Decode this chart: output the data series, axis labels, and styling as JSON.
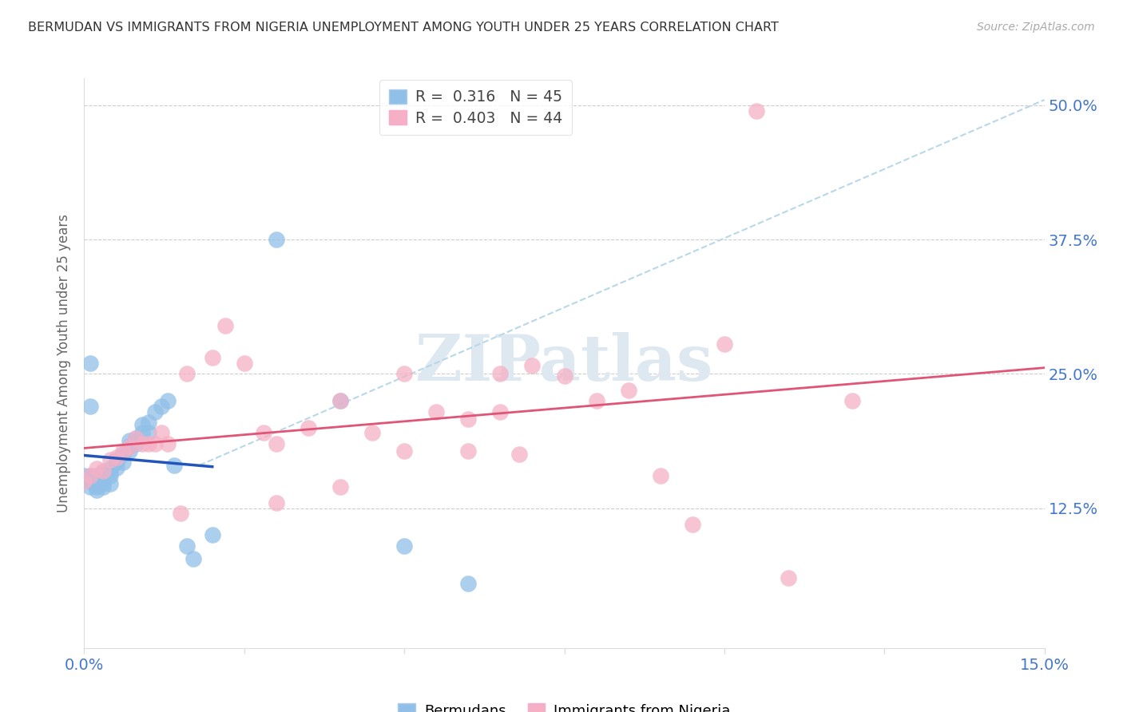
{
  "title": "BERMUDAN VS IMMIGRANTS FROM NIGERIA UNEMPLOYMENT AMONG YOUTH UNDER 25 YEARS CORRELATION CHART",
  "source": "Source: ZipAtlas.com",
  "ylabel": "Unemployment Among Youth under 25 years",
  "xlim": [
    0.0,
    0.15
  ],
  "ylim": [
    -0.005,
    0.525
  ],
  "yticks": [
    0.0,
    0.125,
    0.25,
    0.375,
    0.5
  ],
  "xticks": [
    0.0,
    0.025,
    0.05,
    0.075,
    0.1,
    0.125,
    0.15
  ],
  "legend1_r": "0.316",
  "legend1_n": "45",
  "legend2_r": "0.403",
  "legend2_n": "44",
  "blue_scatter_color": "#90c0e8",
  "pink_scatter_color": "#f5b0c5",
  "trend_blue_color": "#2255bb",
  "trend_pink_color": "#e05575",
  "ref_line_color": "#b8d8e8",
  "watermark": "ZIPatlas",
  "bermudans_x": [
    0.0,
    0.001,
    0.001,
    0.001,
    0.001,
    0.001,
    0.002,
    0.002,
    0.002,
    0.002,
    0.002,
    0.003,
    0.003,
    0.003,
    0.003,
    0.003,
    0.004,
    0.004,
    0.004,
    0.004,
    0.005,
    0.005,
    0.005,
    0.006,
    0.006,
    0.007,
    0.007,
    0.007,
    0.008,
    0.008,
    0.009,
    0.009,
    0.01,
    0.01,
    0.011,
    0.012,
    0.013,
    0.014,
    0.016,
    0.017,
    0.02,
    0.03,
    0.04,
    0.05,
    0.06
  ],
  "bermudans_y": [
    0.155,
    0.26,
    0.22,
    0.155,
    0.145,
    0.15,
    0.155,
    0.145,
    0.148,
    0.142,
    0.15,
    0.155,
    0.152,
    0.158,
    0.148,
    0.145,
    0.155,
    0.162,
    0.158,
    0.148,
    0.17,
    0.163,
    0.168,
    0.175,
    0.168,
    0.178,
    0.183,
    0.188,
    0.19,
    0.185,
    0.195,
    0.203,
    0.205,
    0.195,
    0.215,
    0.22,
    0.225,
    0.165,
    0.09,
    0.078,
    0.1,
    0.375,
    0.225,
    0.09,
    0.055
  ],
  "nigeria_x": [
    0.0,
    0.001,
    0.002,
    0.003,
    0.004,
    0.005,
    0.006,
    0.007,
    0.008,
    0.009,
    0.01,
    0.011,
    0.012,
    0.013,
    0.015,
    0.016,
    0.02,
    0.022,
    0.025,
    0.028,
    0.03,
    0.035,
    0.04,
    0.045,
    0.05,
    0.055,
    0.06,
    0.065,
    0.068,
    0.07,
    0.075,
    0.08,
    0.085,
    0.09,
    0.095,
    0.1,
    0.105,
    0.11,
    0.12,
    0.065,
    0.03,
    0.04,
    0.05,
    0.06
  ],
  "nigeria_y": [
    0.15,
    0.155,
    0.162,
    0.16,
    0.17,
    0.172,
    0.178,
    0.182,
    0.19,
    0.185,
    0.185,
    0.185,
    0.195,
    0.185,
    0.12,
    0.25,
    0.265,
    0.295,
    0.26,
    0.195,
    0.185,
    0.2,
    0.225,
    0.195,
    0.25,
    0.215,
    0.208,
    0.25,
    0.175,
    0.258,
    0.248,
    0.225,
    0.235,
    0.155,
    0.11,
    0.278,
    0.495,
    0.06,
    0.225,
    0.215,
    0.13,
    0.145,
    0.178,
    0.178
  ],
  "blue_line_x0": 0.0,
  "blue_line_x1": 0.02,
  "ref_line_x0": 0.018,
  "ref_line_y0": 0.165,
  "ref_line_x1": 0.15,
  "ref_line_y1": 0.505
}
